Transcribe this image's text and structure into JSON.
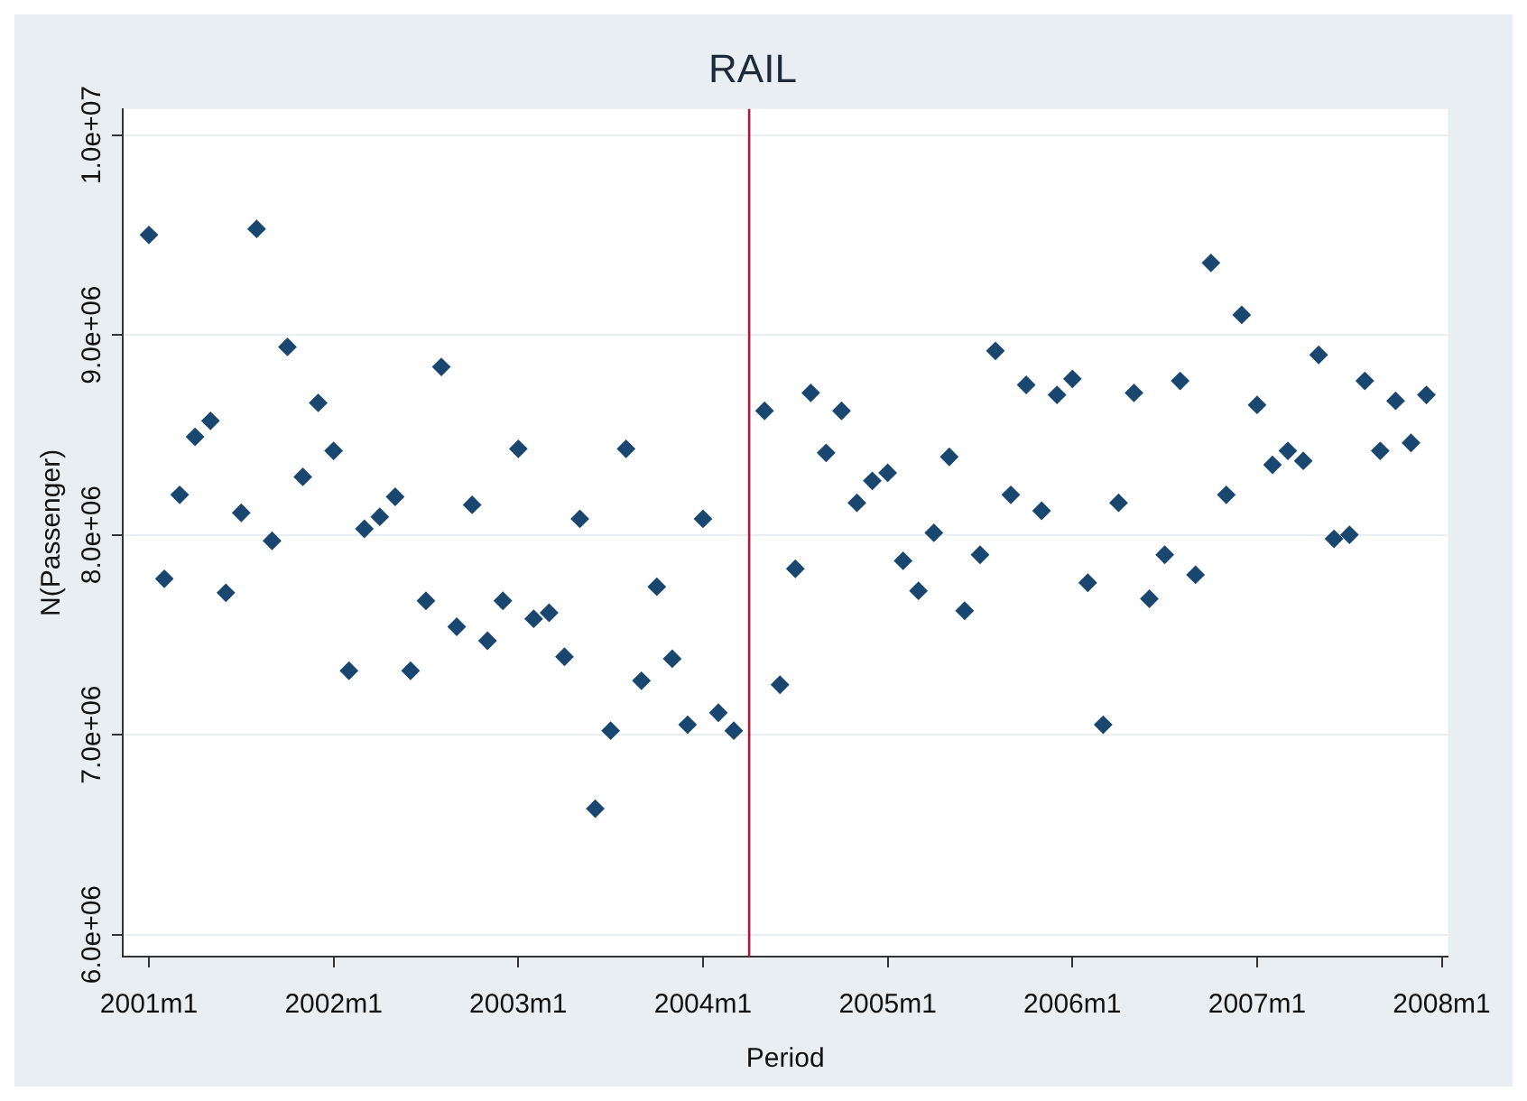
{
  "chart_data": {
    "type": "scatter",
    "title": "RAIL",
    "xlabel": "Period",
    "ylabel": "N(Passenger)",
    "x": [
      "2001-01",
      "2001-02",
      "2001-03",
      "2001-04",
      "2001-05",
      "2001-06",
      "2001-07",
      "2001-08",
      "2001-09",
      "2001-10",
      "2001-11",
      "2001-12",
      "2002-01",
      "2002-02",
      "2002-03",
      "2002-04",
      "2002-05",
      "2002-06",
      "2002-07",
      "2002-08",
      "2002-09",
      "2002-10",
      "2002-11",
      "2002-12",
      "2003-01",
      "2003-02",
      "2003-03",
      "2003-04",
      "2003-05",
      "2003-06",
      "2003-07",
      "2003-08",
      "2003-09",
      "2003-10",
      "2003-11",
      "2003-12",
      "2004-01",
      "2004-02",
      "2004-03",
      "2004-04",
      "2004-05",
      "2004-06",
      "2004-07",
      "2004-08",
      "2004-09",
      "2004-10",
      "2004-11",
      "2004-12",
      "2005-01",
      "2005-02",
      "2005-03",
      "2005-04",
      "2005-05",
      "2005-06",
      "2005-07",
      "2005-08",
      "2005-09",
      "2005-10",
      "2005-11",
      "2005-12",
      "2006-01",
      "2006-02",
      "2006-03",
      "2006-04",
      "2006-05",
      "2006-06",
      "2006-07",
      "2006-08",
      "2006-09",
      "2006-10",
      "2006-11",
      "2006-12",
      "2007-01",
      "2007-02",
      "2007-03",
      "2007-04",
      "2007-05",
      "2007-06",
      "2007-07",
      "2007-08",
      "2007-09",
      "2007-10",
      "2007-11",
      "2007-12"
    ],
    "values": [
      9500000,
      7780000,
      8200000,
      8490000,
      8570000,
      7710000,
      8110000,
      9530000,
      7970000,
      8940000,
      8290000,
      8660000,
      8420000,
      7320000,
      8030000,
      8090000,
      8190000,
      7320000,
      7670000,
      8840000,
      7540000,
      8150000,
      7470000,
      7670000,
      8430000,
      7580000,
      7610000,
      7390000,
      8080000,
      6630000,
      7020000,
      8430000,
      7270000,
      7740000,
      7380000,
      7050000,
      8080000,
      7110000,
      7020000,
      null,
      8620000,
      7250000,
      7830000,
      8710000,
      8410000,
      8620000,
      8160000,
      8270000,
      8310000,
      7870000,
      7720000,
      8010000,
      8390000,
      7620000,
      7900000,
      8920000,
      8200000,
      8750000,
      8120000,
      8700000,
      8780000,
      7760000,
      7050000,
      8160000,
      8710000,
      7680000,
      7900000,
      8770000,
      7800000,
      9360000,
      8200000,
      9100000,
      8650000,
      8350000,
      8420000,
      8370000,
      8900000,
      7980000,
      8000000,
      8770000,
      8420000,
      8670000,
      8460000,
      8700000
    ],
    "color": "#1a476f",
    "marker": "diamond",
    "grid": "y",
    "legend": false,
    "xlim": [
      "2000-11-10",
      "2008-01-13"
    ],
    "xticks": [
      {
        "value": "2001-01",
        "label": "2001m1"
      },
      {
        "value": "2002-01",
        "label": "2002m1"
      },
      {
        "value": "2003-01",
        "label": "2003m1"
      },
      {
        "value": "2004-01",
        "label": "2004m1"
      },
      {
        "value": "2005-01",
        "label": "2005m1"
      },
      {
        "value": "2006-01",
        "label": "2006m1"
      },
      {
        "value": "2007-01",
        "label": "2007m1"
      },
      {
        "value": "2008-01",
        "label": "2008m1"
      }
    ],
    "ylim": [
      5890000,
      10130000
    ],
    "yticks": [
      {
        "value": 6000000,
        "label": "6.0e+06"
      },
      {
        "value": 7000000,
        "label": "7.0e+06"
      },
      {
        "value": 8000000,
        "label": "8.0e+06"
      },
      {
        "value": 9000000,
        "label": "9.0e+06"
      },
      {
        "value": 10000000,
        "label": "1.0e+07"
      }
    ],
    "ref_lines": [
      {
        "axis": "x",
        "value": "2004-04",
        "color": "#b2173a"
      }
    ]
  }
}
